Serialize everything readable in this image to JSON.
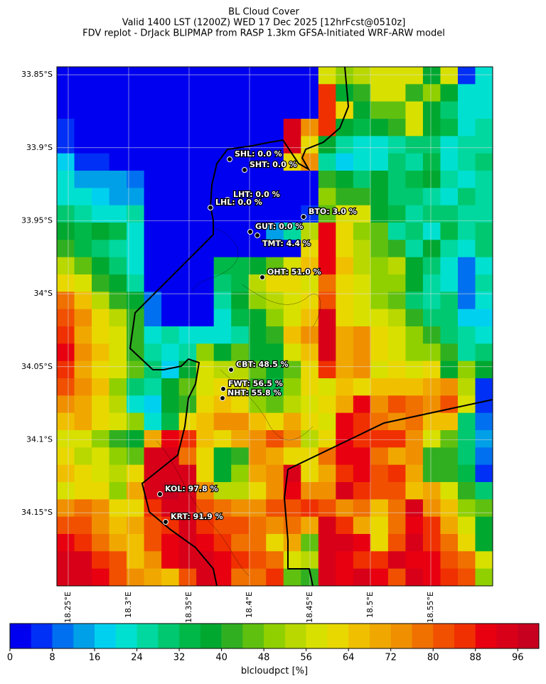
{
  "chart_data": {
    "type": "map",
    "title_lines": [
      "BL Cloud Cover",
      "Valid 1400 LST (1200Z) WED 17 Dec 2025 [12hrFcst@0510z]",
      "FDV replot - DrJack BLIPMAP from RASP 1.3km GFSA-Initiated WRF-ARW model"
    ],
    "xlim": [
      18.2406,
      18.6012
    ],
    "ylim": [
      -34.2001,
      -33.8446
    ],
    "xticks": [
      {
        "value": 18.25,
        "label": "18.25°E"
      },
      {
        "value": 18.3,
        "label": "18.3°E"
      },
      {
        "value": 18.35,
        "label": "18.35°E"
      },
      {
        "value": 18.4,
        "label": "18.4°E"
      },
      {
        "value": 18.45,
        "label": "18.45°E"
      },
      {
        "value": 18.5,
        "label": "18.5°E"
      },
      {
        "value": 18.55,
        "label": "18.55°E"
      }
    ],
    "yticks": [
      {
        "value": -33.85,
        "label": "33.85°S"
      },
      {
        "value": -33.9,
        "label": "33.9°S"
      },
      {
        "value": -33.95,
        "label": "33.95°S"
      },
      {
        "value": -34.0,
        "label": "34°S"
      },
      {
        "value": -34.05,
        "label": "34.05°S"
      },
      {
        "value": -34.1,
        "label": "34.1°S"
      },
      {
        "value": -34.15,
        "label": "34.15°S"
      }
    ],
    "grid": true,
    "z": [
      [
        0,
        0,
        0,
        0,
        0,
        0,
        0,
        0,
        0,
        0,
        0,
        0,
        0,
        0,
        0,
        56,
        50,
        52,
        58,
        58,
        56,
        38,
        56,
        4,
        20
      ],
      [
        0,
        0,
        0,
        0,
        0,
        0,
        0,
        0,
        0,
        0,
        0,
        0,
        0,
        0,
        0,
        86,
        38,
        40,
        58,
        58,
        40,
        50,
        36,
        22,
        22
      ],
      [
        0,
        0,
        0,
        0,
        0,
        0,
        0,
        0,
        0,
        0,
        0,
        0,
        0,
        0,
        0,
        86,
        60,
        36,
        44,
        44,
        58,
        38,
        28,
        22,
        20
      ],
      [
        4,
        0,
        0,
        0,
        0,
        0,
        0,
        0,
        0,
        0,
        0,
        0,
        0,
        92,
        72,
        86,
        36,
        34,
        36,
        40,
        56,
        36,
        34,
        20,
        24
      ],
      [
        4,
        0,
        0,
        0,
        0,
        0,
        0,
        0,
        0,
        0,
        0,
        0,
        0,
        92,
        60,
        36,
        26,
        22,
        20,
        26,
        28,
        28,
        22,
        24,
        26
      ],
      [
        18,
        4,
        4,
        0,
        0,
        0,
        0,
        0,
        0,
        0,
        0,
        0,
        0,
        60,
        72,
        26,
        16,
        20,
        20,
        28,
        26,
        34,
        22,
        26,
        28
      ],
      [
        20,
        14,
        12,
        12,
        10,
        0,
        0,
        0,
        0,
        0,
        0,
        0,
        0,
        0,
        0,
        40,
        36,
        28,
        36,
        30,
        34,
        38,
        26,
        22,
        26
      ],
      [
        22,
        20,
        16,
        14,
        14,
        0,
        0,
        0,
        0,
        0,
        0,
        0,
        0,
        0,
        0,
        50,
        40,
        42,
        36,
        30,
        28,
        26,
        22,
        28,
        26
      ],
      [
        28,
        24,
        22,
        20,
        26,
        0,
        0,
        0,
        0,
        0,
        0,
        0,
        0,
        0,
        4,
        46,
        58,
        56,
        36,
        34,
        26,
        28,
        28,
        26,
        24
      ],
      [
        36,
        32,
        36,
        34,
        22,
        0,
        0,
        0,
        0,
        0,
        0,
        0,
        14,
        26,
        52,
        88,
        60,
        48,
        44,
        26,
        28,
        22,
        32,
        26,
        28
      ],
      [
        40,
        32,
        30,
        26,
        22,
        0,
        0,
        0,
        0,
        0,
        0,
        0,
        0,
        0,
        60,
        90,
        62,
        52,
        44,
        40,
        26,
        36,
        26,
        22,
        30
      ],
      [
        54,
        44,
        38,
        30,
        20,
        0,
        0,
        0,
        0,
        34,
        32,
        38,
        44,
        56,
        64,
        88,
        64,
        52,
        48,
        52,
        36,
        30,
        20,
        10,
        20
      ],
      [
        60,
        56,
        40,
        36,
        24,
        0,
        0,
        0,
        0,
        30,
        34,
        52,
        60,
        60,
        58,
        76,
        62,
        56,
        48,
        50,
        38,
        26,
        20,
        10,
        26
      ],
      [
        76,
        66,
        54,
        42,
        36,
        8,
        0,
        0,
        0,
        24,
        36,
        48,
        52,
        56,
        60,
        80,
        60,
        58,
        50,
        44,
        30,
        26,
        28,
        10,
        20
      ],
      [
        80,
        74,
        60,
        54,
        40,
        10,
        0,
        0,
        0,
        20,
        32,
        38,
        48,
        56,
        64,
        92,
        62,
        58,
        56,
        52,
        40,
        30,
        28,
        16,
        18
      ],
      [
        86,
        70,
        60,
        56,
        42,
        20,
        24,
        22,
        20,
        22,
        26,
        36,
        42,
        64,
        74,
        92,
        68,
        72,
        60,
        56,
        50,
        40,
        30,
        26,
        20
      ],
      [
        88,
        74,
        66,
        58,
        40,
        26,
        22,
        24,
        48,
        38,
        44,
        36,
        38,
        56,
        64,
        92,
        70,
        74,
        60,
        56,
        48,
        50,
        40,
        24,
        28
      ],
      [
        84,
        70,
        62,
        58,
        44,
        28,
        16,
        36,
        56,
        52,
        52,
        44,
        38,
        46,
        60,
        84,
        70,
        72,
        58,
        60,
        56,
        62,
        36,
        48,
        36
      ],
      [
        82,
        72,
        66,
        48,
        28,
        24,
        38,
        46,
        58,
        62,
        56,
        40,
        34,
        50,
        60,
        56,
        64,
        60,
        64,
        66,
        66,
        68,
        74,
        54,
        4
      ],
      [
        74,
        68,
        60,
        54,
        22,
        18,
        36,
        42,
        62,
        66,
        62,
        48,
        44,
        52,
        58,
        60,
        68,
        88,
        74,
        82,
        76,
        72,
        80,
        56,
        6
      ],
      [
        66,
        68,
        60,
        56,
        48,
        22,
        34,
        60,
        66,
        74,
        72,
        64,
        62,
        68,
        60,
        56,
        90,
        86,
        78,
        72,
        76,
        66,
        66,
        30,
        10
      ],
      [
        56,
        58,
        48,
        42,
        38,
        70,
        88,
        84,
        64,
        62,
        68,
        74,
        80,
        74,
        54,
        60,
        88,
        84,
        84,
        84,
        72,
        58,
        44,
        30,
        14
      ],
      [
        60,
        52,
        56,
        50,
        44,
        92,
        92,
        76,
        60,
        38,
        42,
        74,
        70,
        60,
        62,
        76,
        88,
        90,
        76,
        70,
        72,
        40,
        42,
        30,
        10
      ],
      [
        64,
        62,
        58,
        52,
        60,
        92,
        94,
        94,
        62,
        36,
        50,
        68,
        72,
        92,
        62,
        70,
        86,
        88,
        82,
        86,
        68,
        40,
        40,
        32,
        6
      ],
      [
        56,
        60,
        62,
        48,
        68,
        94,
        96,
        94,
        74,
        54,
        52,
        60,
        74,
        88,
        72,
        74,
        92,
        86,
        82,
        80,
        66,
        70,
        56,
        42,
        30
      ],
      [
        74,
        78,
        72,
        62,
        62,
        86,
        94,
        92,
        80,
        76,
        74,
        74,
        80,
        82,
        84,
        82,
        74,
        76,
        64,
        78,
        92,
        74,
        66,
        50,
        44
      ],
      [
        82,
        80,
        74,
        66,
        68,
        82,
        86,
        92,
        84,
        80,
        82,
        76,
        72,
        76,
        70,
        92,
        84,
        70,
        60,
        76,
        88,
        86,
        70,
        58,
        36
      ],
      [
        90,
        84,
        78,
        70,
        64,
        80,
        90,
        94,
        88,
        84,
        78,
        76,
        62,
        68,
        44,
        92,
        92,
        88,
        62,
        80,
        94,
        86,
        76,
        62,
        38
      ],
      [
        92,
        92,
        86,
        82,
        66,
        74,
        88,
        94,
        92,
        90,
        84,
        80,
        78,
        56,
        52,
        94,
        90,
        84,
        86,
        94,
        90,
        88,
        82,
        78,
        56
      ],
      [
        94,
        94,
        90,
        82,
        72,
        68,
        66,
        82,
        92,
        88,
        76,
        78,
        86,
        44,
        40,
        92,
        88,
        94,
        88,
        82,
        92,
        90,
        84,
        82,
        48
      ]
    ],
    "stations": [
      {
        "label": "SHL: 0.0 %",
        "value": 0.0
      },
      {
        "label": "SHT: 0.0 %",
        "value": 0.0
      },
      {
        "label": "LHT: 0.0 %",
        "value": 0.0
      },
      {
        "label": "LHL: 0.0 %",
        "value": 0.0
      },
      {
        "label": "BTO: 3.0 %",
        "value": 3.0
      },
      {
        "label": "GUT: 0.0 %",
        "value": 0.0
      },
      {
        "label": "TMT: 4.4 %",
        "value": 4.4
      },
      {
        "label": "OHT: 51.0 %",
        "value": 51.0
      },
      {
        "label": "CBT: 48.5 %",
        "value": 48.5
      },
      {
        "label": "FWT: 56.5 %",
        "value": 56.5
      },
      {
        "label": "NHT: 55.8 %",
        "value": 55.8
      },
      {
        "label": "KOL: 97.8 %",
        "value": 97.8
      },
      {
        "label": "KRT: 91.9 %",
        "value": 91.9
      }
    ],
    "colorbar": {
      "label": "blcloudpct [%]",
      "lim": [
        0,
        100
      ],
      "ticks": [
        0,
        8,
        16,
        24,
        32,
        40,
        48,
        56,
        64,
        72,
        80,
        88,
        96
      ],
      "colors": [
        "#0000f0",
        "#0030f5",
        "#0070f0",
        "#00a0e8",
        "#00d0f0",
        "#00e0d0",
        "#00d8a0",
        "#00c870",
        "#00b848",
        "#00a830",
        "#30b020",
        "#60c010",
        "#90d000",
        "#b8d800",
        "#d8e000",
        "#e8d800",
        "#f0c000",
        "#f0a800",
        "#f09000",
        "#f07000",
        "#f05000",
        "#f03000",
        "#e80010",
        "#d80018",
        "#c80020"
      ]
    }
  }
}
